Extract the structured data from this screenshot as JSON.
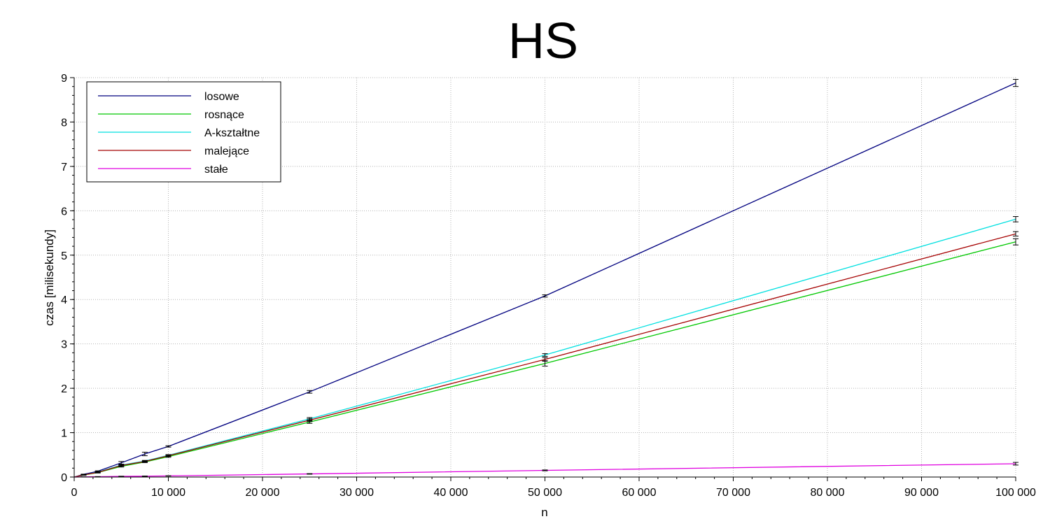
{
  "chart_data": {
    "type": "line",
    "title": "HS",
    "xlabel": "n",
    "ylabel": "czas [milisekundy]",
    "xlim": [
      0,
      100000
    ],
    "ylim": [
      0,
      9
    ],
    "x_ticks": [
      0,
      10000,
      20000,
      30000,
      40000,
      50000,
      60000,
      70000,
      80000,
      90000,
      100000
    ],
    "x_tick_labels": [
      "0",
      "10 000",
      "20 000",
      "30 000",
      "40 000",
      "50 000",
      "60 000",
      "70 000",
      "80 000",
      "90 000",
      "100 000"
    ],
    "y_ticks": [
      0,
      1,
      2,
      3,
      4,
      5,
      6,
      7,
      8,
      9
    ],
    "y_tick_labels": [
      "0",
      "1",
      "2",
      "3",
      "4",
      "5",
      "6",
      "7",
      "8",
      "9"
    ],
    "grid": true,
    "legend_position": "top-left",
    "x": [
      0,
      1000,
      2500,
      5000,
      7500,
      10000,
      25000,
      50000,
      100000
    ],
    "series": [
      {
        "name": "losowe",
        "color": "#00007f",
        "values": [
          0,
          0.06,
          0.13,
          0.32,
          0.52,
          0.69,
          1.92,
          4.08,
          8.88
        ],
        "errors": [
          0,
          0.005,
          0.01,
          0.03,
          0.04,
          0.015,
          0.03,
          0.025,
          0.08
        ]
      },
      {
        "name": "rosnące",
        "color": "#00c800",
        "values": [
          0,
          0.045,
          0.1,
          0.24,
          0.34,
          0.46,
          1.24,
          2.56,
          5.3
        ],
        "errors": [
          0,
          0.005,
          0.01,
          0.015,
          0.015,
          0.015,
          0.03,
          0.06,
          0.07
        ]
      },
      {
        "name": "A-kształtne",
        "color": "#00e0e0",
        "values": [
          0,
          0.05,
          0.11,
          0.27,
          0.36,
          0.49,
          1.31,
          2.75,
          5.81
        ],
        "errors": [
          0,
          0.005,
          0.01,
          0.015,
          0.015,
          0.015,
          0.03,
          0.03,
          0.06
        ]
      },
      {
        "name": "malejące",
        "color": "#a50000",
        "values": [
          0,
          0.048,
          0.105,
          0.26,
          0.35,
          0.48,
          1.28,
          2.65,
          5.48
        ],
        "errors": [
          0,
          0.005,
          0.01,
          0.015,
          0.015,
          0.015,
          0.03,
          0.04,
          0.05
        ]
      },
      {
        "name": "stałe",
        "color": "#e000e0",
        "values": [
          0,
          0.004,
          0.008,
          0.015,
          0.02,
          0.025,
          0.07,
          0.15,
          0.3
        ],
        "errors": [
          0,
          0.001,
          0.002,
          0.003,
          0.003,
          0.003,
          0.006,
          0.01,
          0.03
        ]
      }
    ]
  }
}
